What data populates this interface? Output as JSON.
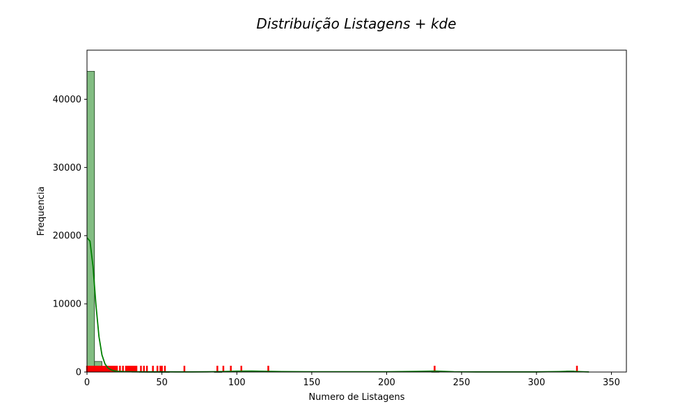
{
  "chart_data": {
    "type": "bar",
    "title": "Distribuição Listagens + kde",
    "xlabel": "Numero de Listagens",
    "ylabel": "Frequencia",
    "xlim": [
      0,
      360
    ],
    "ylim": [
      0,
      47200
    ],
    "xticks": [
      0,
      50,
      100,
      150,
      200,
      250,
      300,
      350
    ],
    "yticks": [
      0,
      10000,
      20000,
      30000,
      40000
    ],
    "grid": false,
    "legend": "none",
    "histogram": {
      "bin_width": 5.0,
      "bins": [
        {
          "x0": 0,
          "x1": 5,
          "count": 44100
        },
        {
          "x0": 5,
          "x1": 10,
          "count": 1550
        },
        {
          "x0": 10,
          "x1": 15,
          "count": 380
        },
        {
          "x0": 15,
          "x1": 20,
          "count": 140
        },
        {
          "x0": 20,
          "x1": 25,
          "count": 70
        },
        {
          "x0": 25,
          "x1": 30,
          "count": 45
        },
        {
          "x0": 30,
          "x1": 35,
          "count": 30
        },
        {
          "x0": 35,
          "x1": 40,
          "count": 15
        },
        {
          "x0": 40,
          "x1": 45,
          "count": 10
        },
        {
          "x0": 45,
          "x1": 50,
          "count": 8
        },
        {
          "x0": 50,
          "x1": 55,
          "count": 6
        },
        {
          "x0": 85,
          "x1": 90,
          "count": 4
        },
        {
          "x0": 230,
          "x1": 235,
          "count": 20
        },
        {
          "x0": 320,
          "x1": 325,
          "count": 150
        },
        {
          "x0": 325,
          "x1": 330,
          "count": 60
        }
      ]
    },
    "kde": {
      "x": [
        0,
        2,
        4,
        6,
        8,
        10,
        12,
        14,
        16,
        18,
        20,
        25,
        30,
        40,
        50,
        60,
        70,
        80,
        90,
        100,
        110,
        120,
        130,
        150,
        200,
        220,
        232,
        245,
        260,
        300,
        315,
        322,
        328,
        335
      ],
      "y": [
        19700,
        19200,
        15500,
        9800,
        5200,
        2500,
        1200,
        600,
        320,
        180,
        110,
        60,
        45,
        35,
        30,
        25,
        20,
        30,
        60,
        120,
        130,
        100,
        60,
        40,
        40,
        80,
        140,
        40,
        20,
        20,
        60,
        110,
        60,
        10
      ]
    },
    "rug": {
      "x": [
        0,
        1,
        2,
        3,
        4,
        5,
        6,
        7,
        8,
        9,
        10,
        11,
        12,
        13,
        14,
        15,
        16,
        17,
        18,
        19,
        20,
        22,
        24,
        26,
        27,
        28,
        29,
        30,
        31,
        32,
        33,
        36,
        38,
        40,
        44,
        47,
        49,
        50,
        52,
        65,
        87,
        91,
        96,
        103,
        121,
        232,
        327
      ]
    },
    "colors": {
      "hist_fill": "#82bd82",
      "hist_edge": "#1f3a1f",
      "kde_line": "#008000",
      "rug": "#ff0000"
    }
  }
}
